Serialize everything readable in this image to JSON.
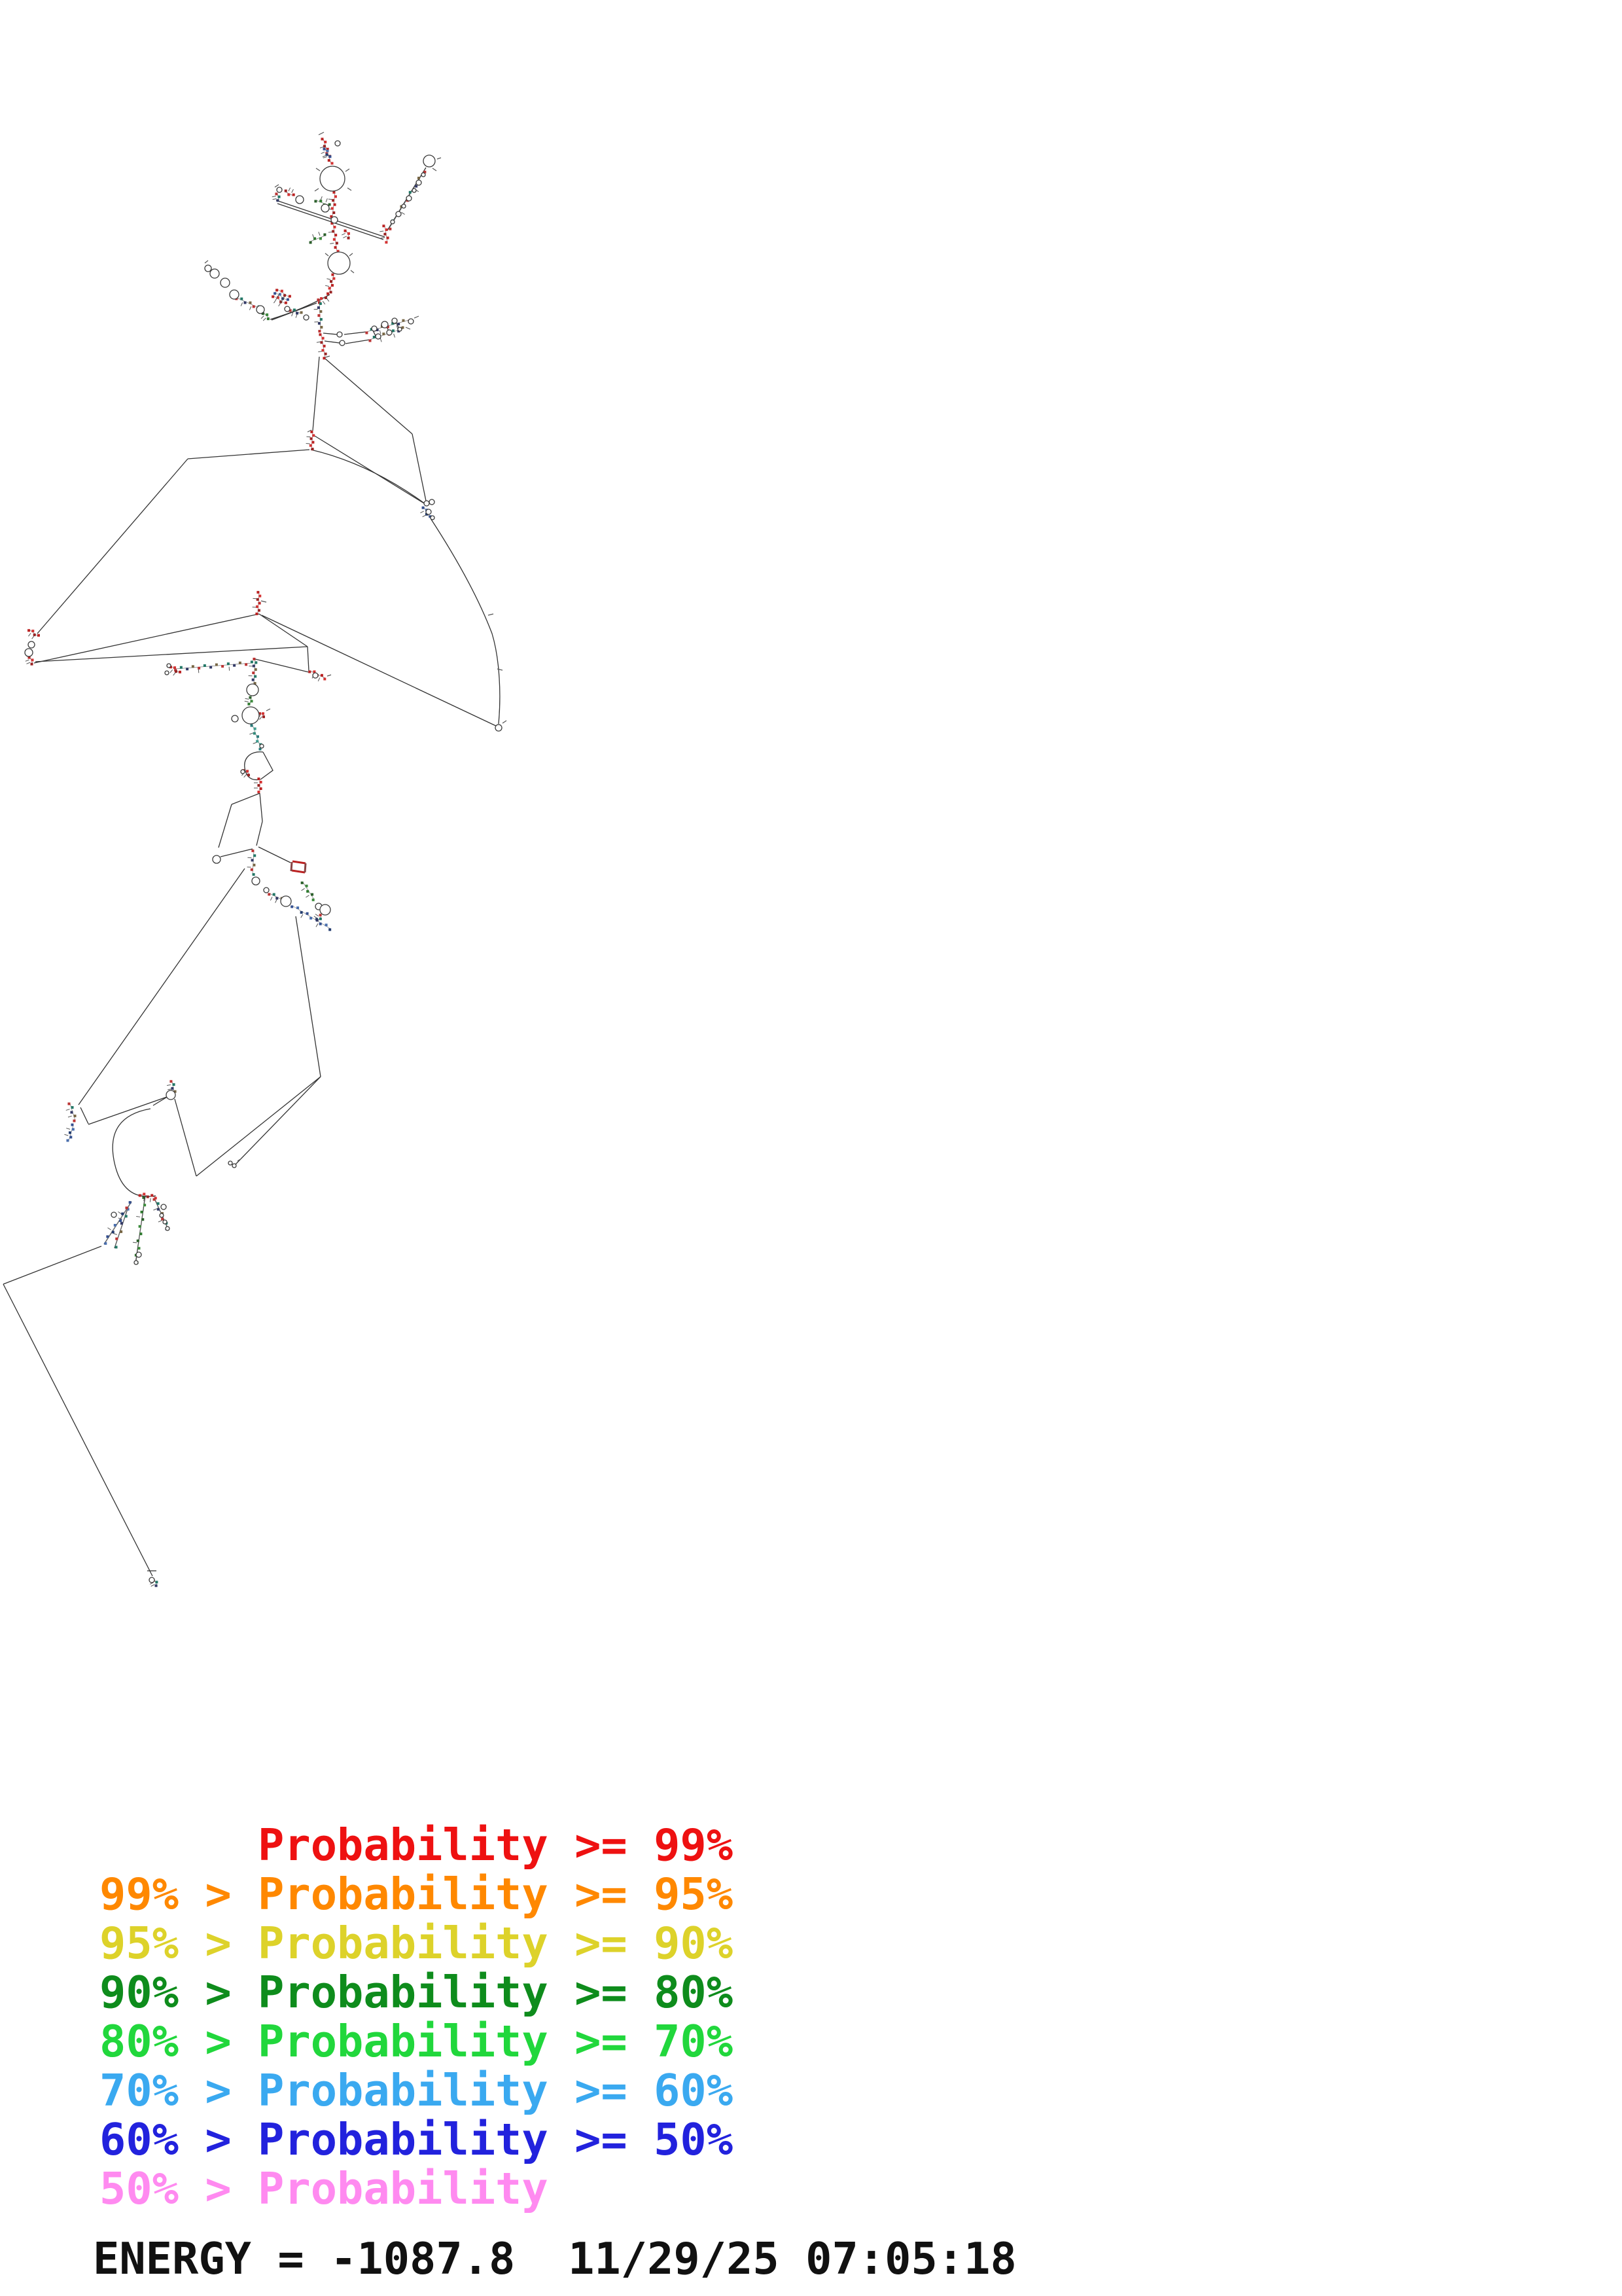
{
  "legend": {
    "lines": [
      {
        "text": "      Probability >= 99%",
        "color": "#ee1111"
      },
      {
        "text": "99% > Probability >= 95%",
        "color": "#ff8800"
      },
      {
        "text": "95% > Probability >= 90%",
        "color": "#ddd22a"
      },
      {
        "text": "90% > Probability >= 80%",
        "color": "#0e8c1c"
      },
      {
        "text": "80% > Probability >= 70%",
        "color": "#21d73c"
      },
      {
        "text": "70% > Probability >= 60%",
        "color": "#3aa9f0"
      },
      {
        "text": "60% > Probability >= 50%",
        "color": "#2222dd"
      },
      {
        "text": "50% > Probability",
        "color": "#ff8af0"
      }
    ]
  },
  "footer": {
    "energy_text": "ENERGY = -1087.8  11/29/25 07:05:18"
  },
  "structure": {
    "line_color": "#333333",
    "tick_color": "#555555",
    "circle_stroke": "#3a3a3a",
    "palettes": {
      "red": [
        "#bb2222",
        "#d43333",
        "#992222"
      ],
      "mix": [
        "#bb3333",
        "#227766",
        "#333a66",
        "#776644"
      ],
      "green": [
        "#2a5f2a",
        "#3c8a3c",
        "#2f7a2f"
      ],
      "blue": [
        "#334f8f",
        "#4a6fae",
        "#223b6e"
      ],
      "teal": [
        "#2a7a7a",
        "#3f9c8f",
        "#2f8a7a"
      ]
    },
    "paths": [
      "M658,792 C688,838 728,905 752,968 C764,1008 766,1062 762,1106",
      "M475,687 Q565,708 650,770",
      "M230,1694 Q162,1706 174,1772 Q186,1836 238,1827",
      "M402,1149 C383,1147 372,1158 374,1173 C376,1188 385,1193 397,1191",
      "M402,1149 L417,1177 L398,1191",
      "M413,488 Q463,473 504,450"
    ],
    "segments": [
      [
        488,
        545,
        478,
        658
      ],
      [
        497,
        548,
        630,
        663
      ],
      [
        630,
        663,
        652,
        770
      ],
      [
        481,
        666,
        648,
        769
      ],
      [
        473,
        687,
        287,
        701
      ],
      [
        287,
        701,
        57,
        968
      ],
      [
        396,
        938,
        52,
        1013
      ],
      [
        470,
        988,
        54,
        1011
      ],
      [
        400,
        940,
        760,
        1110
      ],
      [
        396,
        938,
        470,
        988
      ],
      [
        470,
        988,
        472,
        1025
      ],
      [
        472,
        1027,
        390,
        1007
      ],
      [
        422,
        306,
        588,
        362
      ],
      [
        424,
        311,
        586,
        366
      ],
      [
        592,
        352,
        651,
        256
      ],
      [
        415,
        489,
        484,
        463
      ],
      [
        494,
        509,
        515,
        511
      ],
      [
        496,
        521,
        519,
        524
      ],
      [
        526,
        511,
        560,
        507
      ],
      [
        528,
        525,
        565,
        519
      ],
      [
        570,
        505,
        575,
        515
      ],
      [
        590,
        498,
        596,
        509
      ],
      [
        605,
        492,
        611,
        504
      ],
      [
        397,
        1212,
        354,
        1229
      ],
      [
        354,
        1229,
        334,
        1295
      ],
      [
        337,
        1309,
        386,
        1297
      ],
      [
        397,
        1212,
        401,
        1255
      ],
      [
        401,
        1255,
        392,
        1292
      ],
      [
        395,
        1294,
        444,
        1318
      ],
      [
        374,
        1327,
        120,
        1688
      ],
      [
        452,
        1400,
        490,
        1645
      ],
      [
        123,
        1692,
        135,
        1717
      ],
      [
        135,
        1718,
        255,
        1676
      ],
      [
        267,
        1679,
        300,
        1797
      ],
      [
        300,
        1797,
        490,
        1645
      ],
      [
        490,
        1645,
        360,
        1779
      ],
      [
        234,
        1689,
        257,
        1675
      ],
      [
        222,
        1827,
        207,
        1931
      ],
      [
        201,
        1836,
        159,
        1901
      ],
      [
        196,
        1844,
        175,
        1907
      ],
      [
        236,
        1831,
        257,
        1878
      ],
      [
        155,
        1904,
        5,
        1962
      ],
      [
        5,
        1962,
        233,
        2408
      ],
      [
        225,
        2400,
        239,
        2400
      ]
    ],
    "colored_segments": [
      [
        447,
        1316,
        467,
        1319,
        "#bb2222"
      ],
      [
        446,
        1330,
        466,
        1333,
        "#bb2222"
      ],
      [
        446,
        1317,
        445,
        1331,
        "#884444"
      ],
      [
        467,
        1319,
        466,
        1333,
        "#884444"
      ]
    ],
    "ticks": [
      [
        487,
        206,
        495,
        202
      ],
      [
        420,
        286,
        426,
        282
      ],
      [
        489,
        261,
        483,
        257
      ],
      [
        528,
        262,
        534,
        258
      ],
      [
        531,
        287,
        537,
        291
      ],
      [
        487,
        288,
        481,
        292
      ],
      [
        502,
        391,
        497,
        387
      ],
      [
        534,
        391,
        539,
        387
      ],
      [
        536,
        413,
        541,
        417
      ],
      [
        668,
        243,
        674,
        241
      ],
      [
        661,
        257,
        667,
        261
      ],
      [
        313,
        402,
        318,
        398
      ],
      [
        470,
        660,
        476,
        657
      ],
      [
        746,
        940,
        754,
        938
      ],
      [
        760,
        1022,
        768,
        1024
      ],
      [
        768,
        1105,
        774,
        1101
      ],
      [
        500,
        1033,
        506,
        1031
      ],
      [
        407,
        1086,
        413,
        1083
      ],
      [
        363,
        1774,
        369,
        1770
      ],
      [
        633,
        486,
        640,
        483
      ],
      [
        620,
        500,
        627,
        503
      ],
      [
        407,
        920,
        399,
        918
      ],
      [
        497,
        546,
        504,
        544
      ]
    ],
    "circles": [
      [
        516,
        219,
        4
      ],
      [
        508,
        273,
        19
      ],
      [
        497,
        318,
        6
      ],
      [
        511,
        336,
        5
      ],
      [
        458,
        305,
        6
      ],
      [
        427,
        290,
        4
      ],
      [
        656,
        246,
        9
      ],
      [
        600,
        339,
        3
      ],
      [
        609,
        327,
        4
      ],
      [
        617,
        315,
        3
      ],
      [
        625,
        303,
        4
      ],
      [
        633,
        291,
        3
      ],
      [
        640,
        279,
        4
      ],
      [
        647,
        267,
        3
      ],
      [
        518,
        402,
        17
      ],
      [
        318,
        410,
        5
      ],
      [
        328,
        418,
        7
      ],
      [
        344,
        432,
        7
      ],
      [
        358,
        450,
        7
      ],
      [
        398,
        473,
        6
      ],
      [
        439,
        472,
        4
      ],
      [
        468,
        485,
        4
      ],
      [
        519,
        511,
        4
      ],
      [
        523,
        524,
        4
      ],
      [
        572,
        502,
        4
      ],
      [
        588,
        496,
        5
      ],
      [
        603,
        490,
        4
      ],
      [
        628,
        491,
        4
      ],
      [
        578,
        514,
        4
      ],
      [
        595,
        508,
        4
      ],
      [
        611,
        503,
        3
      ],
      [
        652,
        769,
        4
      ],
      [
        660,
        767,
        4
      ],
      [
        655,
        782,
        4
      ],
      [
        661,
        791,
        3
      ],
      [
        48,
        985,
        5
      ],
      [
        44,
        997,
        6
      ],
      [
        762,
        1112,
        5
      ],
      [
        482,
        1032,
        4
      ],
      [
        258,
        1017,
        3
      ],
      [
        255,
        1028,
        3
      ],
      [
        386,
        1054,
        9
      ],
      [
        383,
        1093,
        13
      ],
      [
        359,
        1098,
        5
      ],
      [
        400,
        1140,
        3
      ],
      [
        371,
        1179,
        3
      ],
      [
        331,
        1313,
        6
      ],
      [
        391,
        1346,
        6
      ],
      [
        407,
        1360,
        4
      ],
      [
        437,
        1377,
        8
      ],
      [
        487,
        1385,
        5
      ],
      [
        497,
        1390,
        8
      ],
      [
        261,
        1673,
        7
      ],
      [
        352,
        1777,
        3
      ],
      [
        358,
        1781,
        3
      ],
      [
        174,
        1856,
        4
      ],
      [
        212,
        1917,
        4
      ],
      [
        208,
        1929,
        3
      ],
      [
        250,
        1844,
        4
      ],
      [
        247,
        1857,
        3
      ],
      [
        252,
        1867,
        3
      ],
      [
        256,
        1877,
        3
      ],
      [
        232,
        2414,
        4
      ]
    ],
    "stems": [
      [
        494,
        212,
        506,
        250,
        8,
        "red"
      ],
      [
        497,
        227,
        503,
        240,
        4,
        "blue"
      ],
      [
        512,
        294,
        508,
        331,
        7,
        "red"
      ],
      [
        503,
        314,
        483,
        306,
        4,
        "green"
      ],
      [
        448,
        299,
        436,
        293,
        3,
        "red"
      ],
      [
        424,
        296,
        426,
        306,
        3,
        "mix"
      ],
      [
        509,
        341,
        515,
        384,
        8,
        "red"
      ],
      [
        529,
        352,
        534,
        363,
        3,
        "red"
      ],
      [
        497,
        360,
        474,
        369,
        4,
        "green"
      ],
      [
        588,
        345,
        592,
        370,
        5,
        "red"
      ],
      [
        595,
        349,
        648,
        262,
        9,
        "mix"
      ],
      [
        510,
        420,
        504,
        446,
        6,
        "red"
      ],
      [
        362,
        455,
        395,
        470,
        6,
        "mix"
      ],
      [
        403,
        478,
        411,
        486,
        3,
        "green"
      ],
      [
        444,
        473,
        460,
        479,
        4,
        "mix"
      ],
      [
        487,
        461,
        502,
        450,
        4,
        "red"
      ],
      [
        488,
        458,
        490,
        506,
        9,
        "mix"
      ],
      [
        491,
        511,
        497,
        547,
        7,
        "red"
      ],
      [
        560,
        507,
        625,
        489,
        9,
        "mix"
      ],
      [
        565,
        519,
        616,
        502,
        8,
        "mix"
      ],
      [
        478,
        660,
        476,
        686,
        6,
        "red"
      ],
      [
        648,
        775,
        656,
        790,
        4,
        "blue"
      ],
      [
        45,
        962,
        58,
        972,
        4,
        "red"
      ],
      [
        46,
        1004,
        50,
        1014,
        3,
        "red"
      ],
      [
        396,
        905,
        394,
        938,
        7,
        "red"
      ],
      [
        474,
        1025,
        497,
        1036,
        5,
        "red"
      ],
      [
        390,
        1007,
        388,
        1044,
        8,
        "mix"
      ],
      [
        268,
        1022,
        385,
        1013,
        14,
        "mix"
      ],
      [
        262,
        1018,
        274,
        1028,
        4,
        "red"
      ],
      [
        384,
        1066,
        382,
        1076,
        3,
        "green"
      ],
      [
        398,
        1089,
        404,
        1094,
        3,
        "red"
      ],
      [
        386,
        1108,
        399,
        1144,
        7,
        "teal"
      ],
      [
        373,
        1176,
        381,
        1183,
        3,
        "red"
      ],
      [
        397,
        1190,
        397,
        1210,
        5,
        "red"
      ],
      [
        388,
        1300,
        386,
        1336,
        6,
        "mix"
      ],
      [
        412,
        1365,
        430,
        1374,
        4,
        "mix"
      ],
      [
        447,
        1384,
        505,
        1419,
        9,
        "blue"
      ],
      [
        463,
        1348,
        480,
        1374,
        5,
        "green"
      ],
      [
        491,
        1399,
        486,
        1407,
        3,
        "mix"
      ],
      [
        107,
        1686,
        115,
        1712,
        5,
        "mix"
      ],
      [
        112,
        1719,
        105,
        1743,
        5,
        "blue"
      ],
      [
        263,
        1652,
        266,
        1668,
        4,
        "mix"
      ],
      [
        214,
        1825,
        238,
        1829,
        5,
        "red"
      ],
      [
        200,
        1838,
        160,
        1899,
        8,
        "blue"
      ],
      [
        195,
        1846,
        176,
        1905,
        6,
        "mix"
      ],
      [
        221,
        1830,
        208,
        1929,
        10,
        "green"
      ],
      [
        237,
        1832,
        256,
        1877,
        7,
        "mix"
      ],
      [
        236,
        2414,
        240,
        2422,
        3,
        "mix"
      ],
      [
        418,
        452,
        436,
        464,
        4,
        "red"
      ],
      [
        421,
        447,
        439,
        459,
        4,
        "blue"
      ],
      [
        424,
        442,
        442,
        454,
        4,
        "red"
      ]
    ]
  }
}
